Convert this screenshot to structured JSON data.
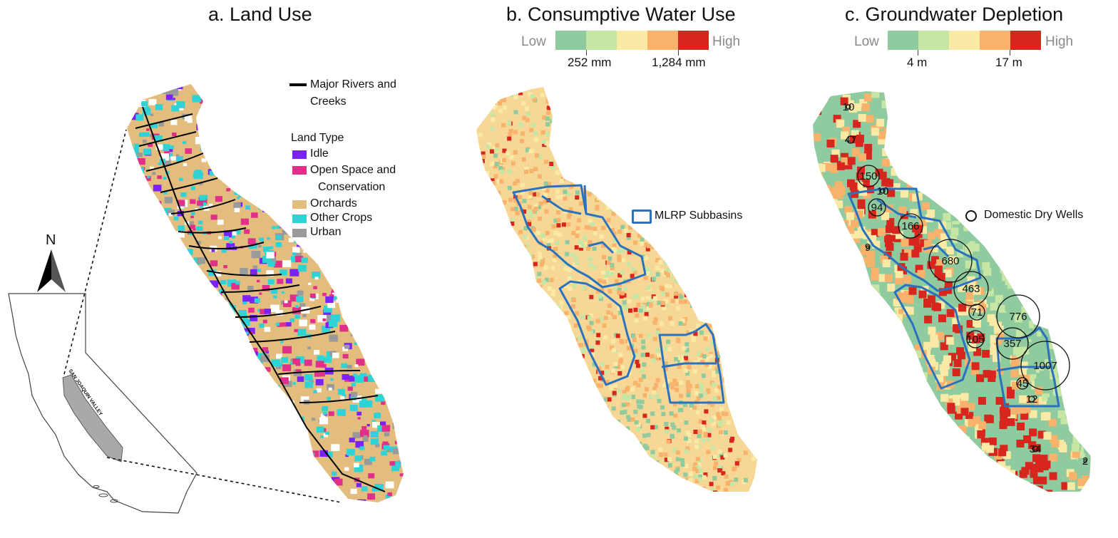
{
  "panel_a": {
    "title": "a. Land Use",
    "north_label": "N",
    "inset_label": "SAN JOAQUIN VALLEY",
    "rivers_label_line1": "Major Rivers and",
    "rivers_label_line2": "Creeks",
    "land_type_heading": "Land Type",
    "legend": [
      {
        "label": "Idle",
        "color": "#7b22f5"
      },
      {
        "label": "Open Space and",
        "label2": "Conservation",
        "color": "#e0308a"
      },
      {
        "label": "Orchards",
        "color": "#e3bd7e"
      },
      {
        "label": "Other Crops",
        "color": "#2fd3d6"
      },
      {
        "label": "Urban",
        "color": "#9a9a9a"
      }
    ],
    "colors": {
      "river": "#000000",
      "state_gray": "#a9a9a9"
    }
  },
  "panel_b": {
    "title": "b. Consumptive Water Use",
    "scale_low": "Low",
    "scale_high": "High",
    "tick1": "252 mm",
    "tick2": "1,284 mm",
    "subbasin_label": "MLRP Subbasins",
    "scale_colors": [
      "#8fcb9e",
      "#c6e6a6",
      "#fbeaa6",
      "#f8b26b",
      "#d7261e"
    ]
  },
  "panel_c": {
    "title": "c. Groundwater Depletion",
    "scale_low": "Low",
    "scale_high": "High",
    "tick1": "4 m",
    "tick2": "17 m",
    "wells_label": "Domestic Dry Wells",
    "scale_colors": [
      "#8fcb9e",
      "#c6e6a6",
      "#fbeaa6",
      "#f8b26b",
      "#d7261e"
    ],
    "wells": [
      "10",
      "47",
      "150",
      "10",
      "94",
      "166",
      "9",
      "680",
      "463",
      "71",
      "776",
      "105",
      "357",
      "1007",
      "45",
      "12",
      "34",
      "2"
    ]
  }
}
